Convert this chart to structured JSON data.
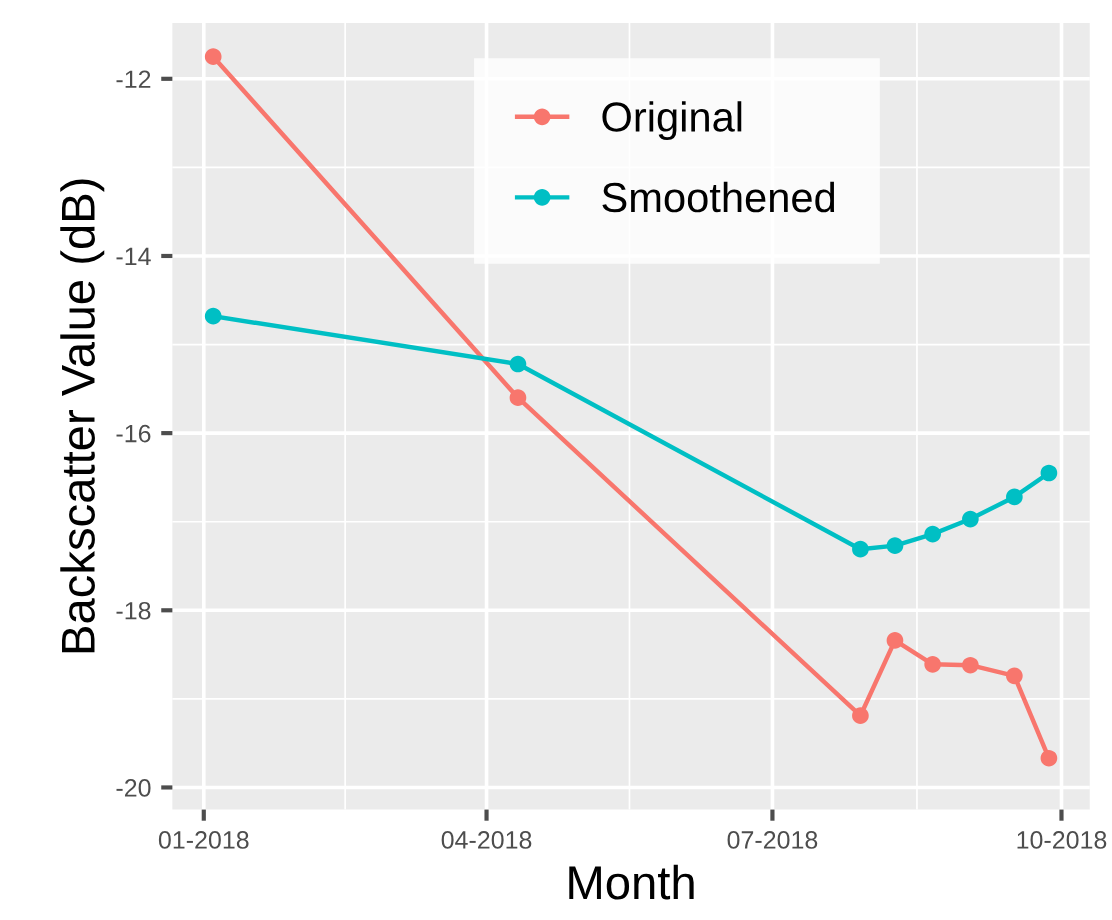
{
  "chart_data": {
    "type": "line",
    "xlabel": "Month",
    "ylabel": "Backscatter Value (dB)",
    "xlim": [
      "2017-12-22",
      "2018-10-10"
    ],
    "ylim": [
      -20.25,
      -11.37
    ],
    "xticks": [
      {
        "value": "2018-01-01",
        "label": "01-2018"
      },
      {
        "value": "2018-04-01",
        "label": "04-2018"
      },
      {
        "value": "2018-07-01",
        "label": "07-2018"
      },
      {
        "value": "2018-10-01",
        "label": "10-2018"
      }
    ],
    "yticks": [
      -20,
      -18,
      -16,
      -14,
      -12
    ],
    "grid": true,
    "legend": "top",
    "marker": "circle",
    "line_style": "solid",
    "x": [
      "2018-01-04",
      "2018-04-11",
      "2018-07-29",
      "2018-08-09",
      "2018-08-21",
      "2018-09-02",
      "2018-09-16",
      "2018-09-27"
    ],
    "series": [
      {
        "name": "Original",
        "color": "#f8766d",
        "values": [
          -11.75,
          -15.6,
          -19.19,
          -18.34,
          -18.61,
          -18.62,
          -18.74,
          -19.67
        ]
      },
      {
        "name": "Smoothened",
        "color": "#00bfc4",
        "values": [
          -14.68,
          -15.22,
          -17.31,
          -17.27,
          -17.14,
          -16.97,
          -16.72,
          -16.45
        ]
      }
    ]
  }
}
